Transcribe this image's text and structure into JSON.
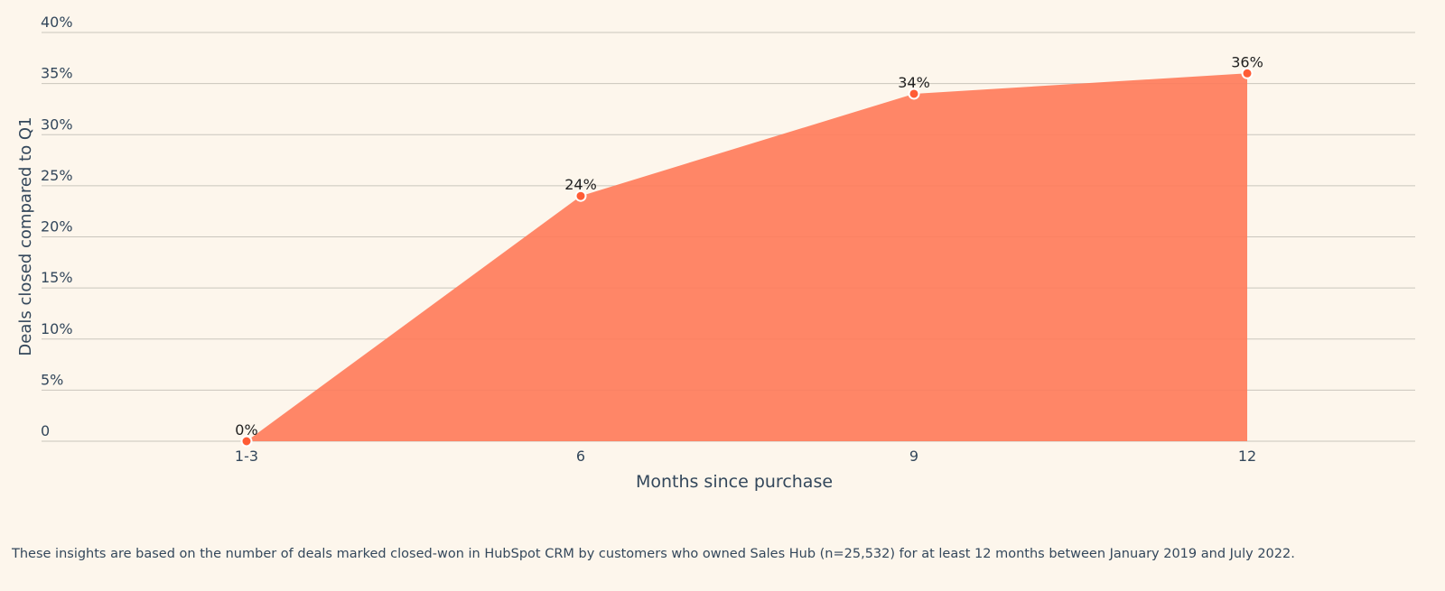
{
  "chart_data": {
    "type": "area",
    "categories": [
      "1-3",
      "6",
      "9",
      "12"
    ],
    "values": [
      0,
      24,
      34,
      36
    ],
    "data_labels": [
      "0%",
      "24%",
      "34%",
      "36%"
    ],
    "title": "",
    "xlabel": "Months since purchase",
    "ylabel": "Deals closed compared to Q1",
    "ylim": [
      0,
      40
    ],
    "yticks": [
      0,
      5,
      10,
      15,
      20,
      25,
      30,
      35,
      40
    ],
    "ytick_labels": [
      "0",
      "5%",
      "10%",
      "15%",
      "20%",
      "25%",
      "30%",
      "35%",
      "40%"
    ],
    "grid": true,
    "legend": "none",
    "colors": {
      "area": "#ff7a59",
      "point": "#ff5c35",
      "grid": "#c9c5bd",
      "text": "#33475b",
      "background": "#fdf6ec"
    }
  },
  "footnote": "These insights are based on the number of deals marked closed-won in HubSpot CRM by customers who owned Sales Hub (n=25,532) for at least 12 months between January 2019 and July 2022."
}
